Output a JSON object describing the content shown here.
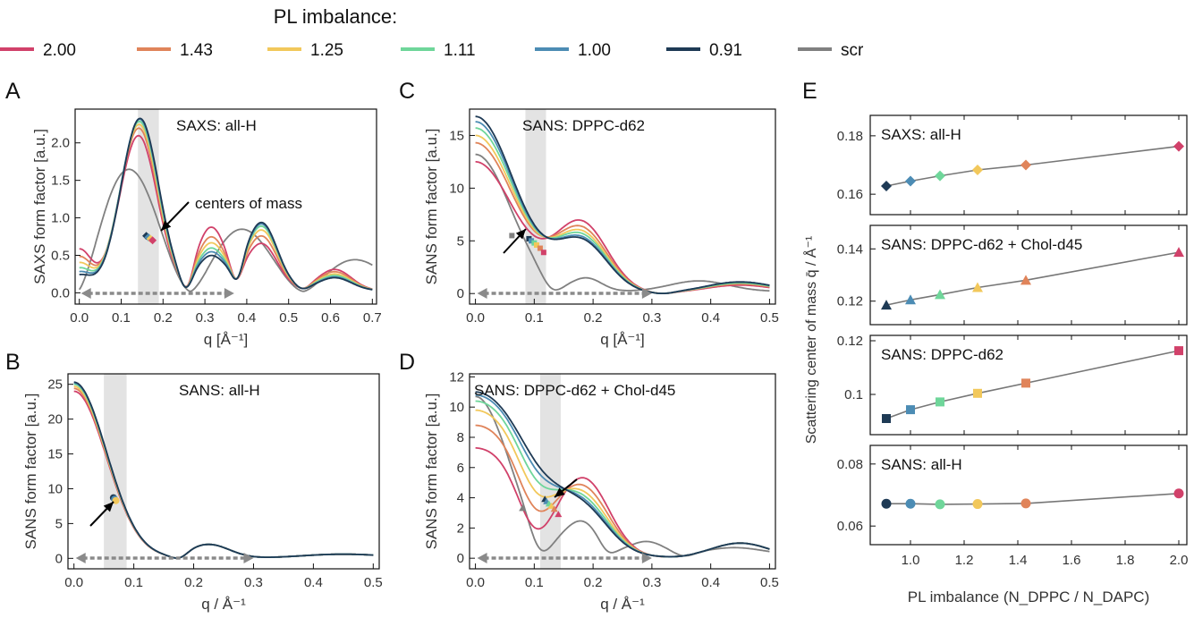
{
  "legend": {
    "title": "PL imbalance:",
    "entries": [
      {
        "label": "2.00",
        "color": "#d1416a"
      },
      {
        "label": "1.43",
        "color": "#e0845a"
      },
      {
        "label": "1.25",
        "color": "#f2c85b"
      },
      {
        "label": "1.11",
        "color": "#6fd69a"
      },
      {
        "label": "1.00",
        "color": "#4c8cb4"
      },
      {
        "label": "0.91",
        "color": "#1e3a55"
      },
      {
        "label": "scr",
        "color": "#808080"
      }
    ]
  },
  "chart_data": [
    {
      "id": "A",
      "type": "line",
      "letter": "A",
      "title": "SAXS: all-H",
      "xlabel": "q [Å⁻¹]",
      "ylabel": "SAXS form factor [a.u.]",
      "xlim": [
        -0.01,
        0.71
      ],
      "ylim": [
        -0.15,
        2.45
      ],
      "xticks": [
        "0.0",
        "0.1",
        "0.2",
        "0.3",
        "0.4",
        "0.5",
        "0.6",
        "0.7"
      ],
      "yticks": [
        "0.0",
        "0.5",
        "1.0",
        "1.5",
        "2.0"
      ],
      "shade": [
        0.14,
        0.19
      ],
      "arrow_range": [
        0.0,
        0.37
      ],
      "annotation": "centers of mass",
      "com_points": [
        [
          0.16,
          0.76
        ],
        [
          0.165,
          0.74
        ],
        [
          0.17,
          0.72
        ],
        [
          0.175,
          0.7
        ]
      ]
    },
    {
      "id": "B",
      "type": "line",
      "letter": "B",
      "title": "SANS: all-H",
      "xlabel": "q / Å⁻¹",
      "ylabel": "SANS form factor [a.u.]",
      "xlim": [
        -0.01,
        0.51
      ],
      "ylim": [
        -1.5,
        26.5
      ],
      "xticks": [
        "0.0",
        "0.1",
        "0.2",
        "0.3",
        "0.4",
        "0.5"
      ],
      "yticks": [
        "0",
        "5",
        "10",
        "15",
        "20",
        "25"
      ],
      "shade": [
        0.05,
        0.088
      ],
      "arrow_range": [
        0.0,
        0.3
      ],
      "com_points": [
        [
          0.066,
          8.7
        ],
        [
          0.068,
          8.5
        ],
        [
          0.07,
          8.3
        ]
      ]
    },
    {
      "id": "C",
      "type": "line",
      "letter": "C",
      "title": "SANS: DPPC-d62",
      "xlabel": "q [Å⁻¹]",
      "ylabel": "SANS form factor [a.u.]",
      "xlim": [
        -0.01,
        0.51
      ],
      "ylim": [
        -1,
        17.5
      ],
      "xticks": [
        "0.0",
        "0.1",
        "0.2",
        "0.3",
        "0.4",
        "0.5"
      ],
      "yticks": [
        "0",
        "5",
        "10",
        "15"
      ],
      "shade": [
        0.085,
        0.12
      ],
      "arrow_range": [
        0.0,
        0.3
      ],
      "com_points": [
        [
          0.062,
          5.5
        ],
        [
          0.091,
          5.2
        ],
        [
          0.095,
          5.0
        ],
        [
          0.1,
          4.8
        ],
        [
          0.104,
          4.6
        ],
        [
          0.11,
          4.3
        ],
        [
          0.116,
          3.9
        ]
      ]
    },
    {
      "id": "D",
      "type": "line",
      "letter": "D",
      "title": "SANS: DPPC-d62 + Chol-d45",
      "xlabel": "q / Å⁻¹",
      "ylabel": "SANS form factor [a.u.]",
      "xlim": [
        -0.01,
        0.51
      ],
      "ylim": [
        -0.7,
        12.2
      ],
      "xticks": [
        "0.0",
        "0.1",
        "0.2",
        "0.3",
        "0.4",
        "0.5"
      ],
      "yticks": [
        "0",
        "2",
        "4",
        "6",
        "8",
        "10",
        "12"
      ],
      "shade": [
        0.11,
        0.145
      ],
      "arrow_range": [
        0.0,
        0.3
      ],
      "com_points": [
        [
          0.08,
          3.3
        ],
        [
          0.118,
          3.9
        ],
        [
          0.121,
          3.75
        ],
        [
          0.125,
          3.6
        ],
        [
          0.129,
          3.45
        ],
        [
          0.134,
          3.25
        ],
        [
          0.141,
          2.9
        ]
      ]
    },
    {
      "id": "E",
      "type": "line",
      "letter": "E",
      "xlabel": "PL imbalance (N_DPPC / N_DAPC)",
      "ylabel": "Scattering center of mass q̄ / Å⁻¹",
      "x": [
        0.91,
        1.0,
        1.11,
        1.25,
        1.43,
        2.0
      ],
      "xlim": [
        0.85,
        2.03
      ],
      "xticks": [
        "1.0",
        "1.2",
        "1.4",
        "1.6",
        "1.8",
        "2.0"
      ],
      "subplots": [
        {
          "title": "SAXS: all-H",
          "marker": "diamond",
          "ylim": [
            0.153,
            0.187
          ],
          "yticks": [
            "0.16",
            "0.18"
          ],
          "values": [
            0.1628,
            0.1645,
            0.1663,
            0.1683,
            0.17,
            0.1764
          ]
        },
        {
          "title": "SANS: DPPC-d62 + Chol-d45",
          "marker": "triangle",
          "ylim": [
            0.111,
            0.149
          ],
          "yticks": [
            "0.12",
            "0.14"
          ],
          "values": [
            0.1185,
            0.1205,
            0.1225,
            0.1252,
            0.128,
            0.1387
          ]
        },
        {
          "title": "SANS: DPPC-d62",
          "marker": "square",
          "ylim": [
            0.085,
            0.122
          ],
          "yticks": [
            "0.1",
            "0.12"
          ],
          "values": [
            0.091,
            0.0943,
            0.0972,
            0.1004,
            0.1042,
            0.1163
          ]
        },
        {
          "title": "SANS: all-H",
          "marker": "circle",
          "ylim": [
            0.054,
            0.086
          ],
          "yticks": [
            "0.06",
            "0.08"
          ],
          "values": [
            0.0672,
            0.0672,
            0.067,
            0.0671,
            0.0673,
            0.0705
          ]
        }
      ]
    }
  ]
}
